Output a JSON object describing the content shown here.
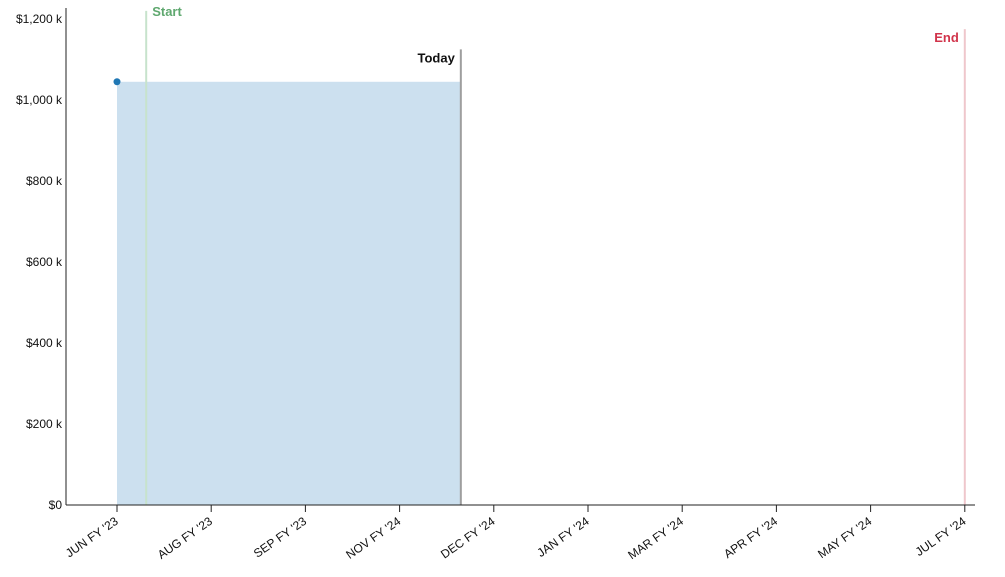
{
  "chart_data": {
    "type": "area",
    "title": "",
    "xlabel": "",
    "ylabel": "",
    "ylim": [
      0,
      1200000
    ],
    "y_ticks": [
      {
        "value": 0,
        "label": "$0"
      },
      {
        "value": 200000,
        "label": "$200 k"
      },
      {
        "value": 400000,
        "label": "$400 k"
      },
      {
        "value": 600000,
        "label": "$600 k"
      },
      {
        "value": 800000,
        "label": "$800 k"
      },
      {
        "value": 1000000,
        "label": "$1,000 k"
      },
      {
        "value": 1200000,
        "label": "$1,200 k"
      }
    ],
    "x_ticks": [
      "JUN FY '23",
      "AUG FY '23",
      "SEP FY '23",
      "NOV FY '24",
      "DEC FY '24",
      "JAN FY '24",
      "MAR FY '24",
      "APR FY '24",
      "MAY FY '24",
      "JUL FY '24"
    ],
    "area": {
      "value": 1045000,
      "start_tick": 0,
      "end_tick": 3.65,
      "fill_color": "#cce0ef"
    },
    "point": {
      "tick": 0,
      "value": 1045000,
      "color": "#1f77b4"
    },
    "markers": [
      {
        "label": "Start",
        "tick": 0.31,
        "color": "#5fa86f",
        "line_color": "#c7e3cc",
        "top_value": 1220000
      },
      {
        "label": "Today",
        "tick": 3.65,
        "color": "#111111",
        "line_color": "#9e9e9e",
        "top_value": 1125000
      },
      {
        "label": "End",
        "tick": 9,
        "color": "#d1344b",
        "line_color": "#efc7cc",
        "top_value": 1175000
      }
    ],
    "grid": false,
    "legend": "none"
  }
}
